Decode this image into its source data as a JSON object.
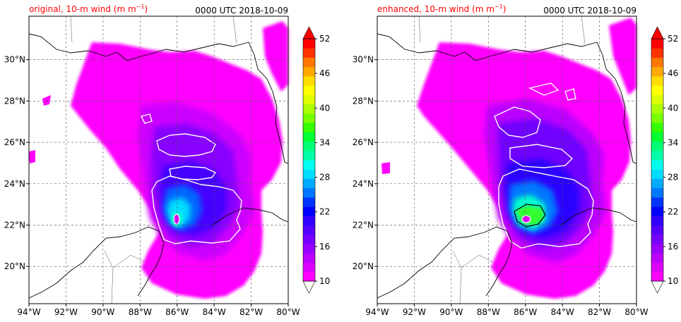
{
  "chart_data": [
    {
      "type": "heatmap",
      "title_left": "original, 10-m wind (m m",
      "title_left_sup": "−1",
      "title_left_close": ")",
      "title_right": "0000 UTC 2018-10-09",
      "x_ticks": [
        "94°W",
        "92°W",
        "90°W",
        "88°W",
        "86°W",
        "84°W",
        "82°W",
        "80°W"
      ],
      "y_ticks": [
        "20°N",
        "22°N",
        "24°N",
        "26°N",
        "28°N",
        "30°N"
      ],
      "xlim": [
        -94,
        -80
      ],
      "ylim": [
        18.2,
        32.1
      ],
      "colorbar_ticks": [
        "10",
        "16",
        "22",
        "28",
        "34",
        "40",
        "46",
        "52"
      ],
      "colorbar_range": [
        10,
        52
      ],
      "colorbar_extend": "both",
      "storm_center": {
        "lon": -86.1,
        "lat": 22.3
      },
      "max_wind_class": 28
    },
    {
      "type": "heatmap",
      "title_left": "enhanced, 10-m wind (m m",
      "title_left_sup": "−1",
      "title_left_close": ")",
      "title_right": "0000 UTC 2018-10-09",
      "x_ticks": [
        "94°W",
        "92°W",
        "90°W",
        "88°W",
        "86°W",
        "84°W",
        "82°W",
        "80°W"
      ],
      "y_ticks": [
        "20°N",
        "22°N",
        "24°N",
        "26°N",
        "28°N",
        "30°N"
      ],
      "xlim": [
        -94,
        -80
      ],
      "ylim": [
        18.2,
        32.1
      ],
      "colorbar_ticks": [
        "10",
        "16",
        "22",
        "28",
        "34",
        "40",
        "46",
        "52"
      ],
      "colorbar_range": [
        10,
        52
      ],
      "colorbar_extend": "both",
      "storm_center": {
        "lon": -86.0,
        "lat": 22.3
      },
      "max_wind_class": 38
    }
  ],
  "colors": {
    "title": "#ff0000",
    "colorbar": [
      "#ff00ff",
      "#dd00ff",
      "#bb00ff",
      "#9900ff",
      "#7700ff",
      "#5500ff",
      "#3300ff",
      "#0000ff",
      "#0033ff",
      "#0077ff",
      "#00aaff",
      "#00ddff",
      "#00ffee",
      "#00ffaa",
      "#00ff77",
      "#00ff33",
      "#33ff00",
      "#77ff00",
      "#aaff00",
      "#ddff00",
      "#ffff00",
      "#ffdd00",
      "#ffaa00",
      "#ff7700",
      "#ff3300",
      "#ff0000"
    ]
  }
}
